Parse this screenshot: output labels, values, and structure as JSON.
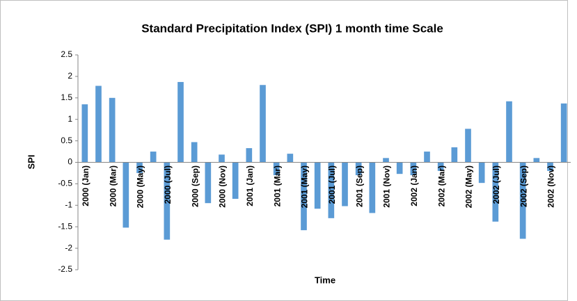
{
  "chart_data": {
    "type": "bar",
    "title": "Standard Precipitation Index (SPI) 1 month time Scale",
    "x_label": "Time",
    "y_label": "SPI",
    "categories": [
      "2000 (Jan)",
      null,
      "2000 (Mar)",
      null,
      "2000 (May)",
      null,
      "2000 (Jul)",
      null,
      "2000 (Sep)",
      null,
      "2000 (Nov)",
      null,
      "2001 (Jan)",
      null,
      "2001 (Mar)",
      null,
      "2001 (May)",
      null,
      "2001 (Jul)",
      null,
      "2001 (Sep)",
      null,
      "2001 (Nov)",
      null,
      "2002 (Jan)",
      null,
      "2002 (Mar)",
      null,
      "2002 (May)",
      null,
      "2002 (Jul)",
      null,
      "2002 (Sep)",
      null,
      "2002 (Nov)",
      null
    ],
    "values": [
      1.35,
      1.78,
      1.5,
      -1.52,
      -0.25,
      0.25,
      -1.8,
      1.87,
      0.47,
      -0.95,
      0.18,
      -0.85,
      0.33,
      1.8,
      -0.3,
      0.2,
      -1.58,
      -1.08,
      -1.3,
      -1.02,
      -0.3,
      -1.18,
      0.1,
      -0.27,
      -0.3,
      0.25,
      -0.2,
      0.35,
      0.78,
      -0.48,
      -1.38,
      1.42,
      -1.78,
      0.1,
      -0.2,
      1.37
    ],
    "color": "#5b9bd5",
    "ylim": [
      -2.5,
      2.5
    ],
    "yticks": [
      -2.5,
      -2,
      -1.5,
      -1,
      -0.5,
      0,
      0.5,
      1,
      1.5,
      2,
      2.5
    ],
    "grid": false
  }
}
